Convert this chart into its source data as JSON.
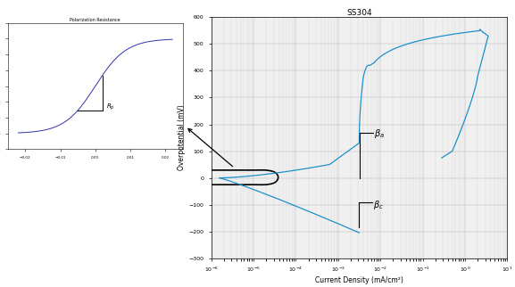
{
  "title_right": "SS304",
  "title_left": "Polarization Resistance",
  "xlabel_right": "Current Density (mA/cm²)",
  "ylabel_right": "Overpotential (mV)",
  "right_ylim": [
    -300,
    600
  ],
  "curve_color": "#1e90c8",
  "left_curve_color": "#3030aa",
  "bg_color": "#f0f0f0",
  "figure_bg": "#ffffff",
  "right_yticks": [
    -300,
    -200,
    -100,
    0,
    100,
    200,
    300,
    400,
    500,
    600
  ],
  "arrow_color": "#111111"
}
